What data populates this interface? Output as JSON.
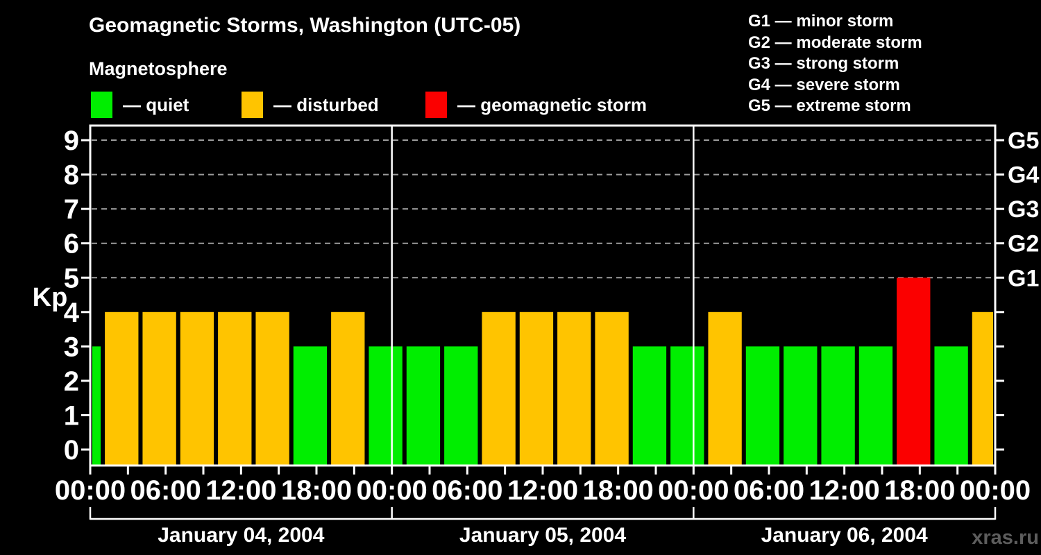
{
  "title": "Geomagnetic Storms, Washington (UTC-05)",
  "subtitle": "Magnetosphere",
  "condition_legend": [
    {
      "label": "— quiet",
      "status": "quiet",
      "color": "#00ee00"
    },
    {
      "label": "— disturbed",
      "status": "disturbed",
      "color": "#ffc400"
    },
    {
      "label": "— geomagnetic storm",
      "status": "storm",
      "color": "#fb0000"
    }
  ],
  "storm_scale_legend": [
    "G1 — minor storm",
    "G2 — moderate storm",
    "G3 — strong storm",
    "G4 — severe storm",
    "G5 — extreme storm"
  ],
  "watermark": "xras.ru",
  "colors": {
    "background": "#000000",
    "text": "#ffffff",
    "grid": "#9c9c9c",
    "axis": "#ffffff",
    "day_line": "#ffffff",
    "watermark": "#5d5d5d",
    "quiet": "#00ee00",
    "disturbed": "#ffc400",
    "storm": "#fb0000"
  },
  "chart_data": {
    "type": "bar",
    "title": "Geomagnetic Storms, Washington (UTC-05)",
    "ylabel": "Kp",
    "ylim": [
      0,
      9
    ],
    "y_ticks": [
      0,
      1,
      2,
      3,
      4,
      5,
      6,
      7,
      8,
      9
    ],
    "grid_levels": [
      5,
      6,
      7,
      8,
      9
    ],
    "right_axis_labels": [
      {
        "kp": 5,
        "label": "G1"
      },
      {
        "kp": 6,
        "label": "G2"
      },
      {
        "kp": 7,
        "label": "G3"
      },
      {
        "kp": 8,
        "label": "G4"
      },
      {
        "kp": 9,
        "label": "G5"
      }
    ],
    "total_hours": 72,
    "minor_tick_hours": 3,
    "label_step_hours": 6,
    "x_tick_labels": [
      "00:00",
      "06:00",
      "12:00",
      "18:00",
      "00:00",
      "06:00",
      "12:00",
      "18:00",
      "00:00",
      "06:00",
      "12:00",
      "18:00",
      "00:00"
    ],
    "day_boundaries_hours": [
      24,
      48
    ],
    "days": [
      {
        "label": "January 04, 2004",
        "center_hour": 12
      },
      {
        "label": "January 05, 2004",
        "center_hour": 36
      },
      {
        "label": "January 06, 2004",
        "center_hour": 60
      }
    ],
    "bars": [
      {
        "start_hour": 0,
        "end_hour": 1,
        "kp": 3,
        "status": "quiet"
      },
      {
        "start_hour": 1,
        "end_hour": 4,
        "kp": 4,
        "status": "disturbed"
      },
      {
        "start_hour": 4,
        "end_hour": 7,
        "kp": 4,
        "status": "disturbed"
      },
      {
        "start_hour": 7,
        "end_hour": 10,
        "kp": 4,
        "status": "disturbed"
      },
      {
        "start_hour": 10,
        "end_hour": 13,
        "kp": 4,
        "status": "disturbed"
      },
      {
        "start_hour": 13,
        "end_hour": 16,
        "kp": 4,
        "status": "disturbed"
      },
      {
        "start_hour": 16,
        "end_hour": 19,
        "kp": 3,
        "status": "quiet"
      },
      {
        "start_hour": 19,
        "end_hour": 22,
        "kp": 4,
        "status": "disturbed"
      },
      {
        "start_hour": 22,
        "end_hour": 25,
        "kp": 3,
        "status": "quiet"
      },
      {
        "start_hour": 25,
        "end_hour": 28,
        "kp": 3,
        "status": "quiet"
      },
      {
        "start_hour": 28,
        "end_hour": 31,
        "kp": 3,
        "status": "quiet"
      },
      {
        "start_hour": 31,
        "end_hour": 34,
        "kp": 4,
        "status": "disturbed"
      },
      {
        "start_hour": 34,
        "end_hour": 37,
        "kp": 4,
        "status": "disturbed"
      },
      {
        "start_hour": 37,
        "end_hour": 40,
        "kp": 4,
        "status": "disturbed"
      },
      {
        "start_hour": 40,
        "end_hour": 43,
        "kp": 4,
        "status": "disturbed"
      },
      {
        "start_hour": 43,
        "end_hour": 46,
        "kp": 3,
        "status": "quiet"
      },
      {
        "start_hour": 46,
        "end_hour": 49,
        "kp": 3,
        "status": "quiet"
      },
      {
        "start_hour": 49,
        "end_hour": 52,
        "kp": 4,
        "status": "disturbed"
      },
      {
        "start_hour": 52,
        "end_hour": 55,
        "kp": 3,
        "status": "quiet"
      },
      {
        "start_hour": 55,
        "end_hour": 58,
        "kp": 3,
        "status": "quiet"
      },
      {
        "start_hour": 58,
        "end_hour": 61,
        "kp": 3,
        "status": "quiet"
      },
      {
        "start_hour": 61,
        "end_hour": 64,
        "kp": 3,
        "status": "quiet"
      },
      {
        "start_hour": 64,
        "end_hour": 67,
        "kp": 5,
        "status": "storm"
      },
      {
        "start_hour": 67,
        "end_hour": 70,
        "kp": 3,
        "status": "quiet"
      },
      {
        "start_hour": 70,
        "end_hour": 72,
        "kp": 4,
        "status": "disturbed"
      }
    ]
  }
}
